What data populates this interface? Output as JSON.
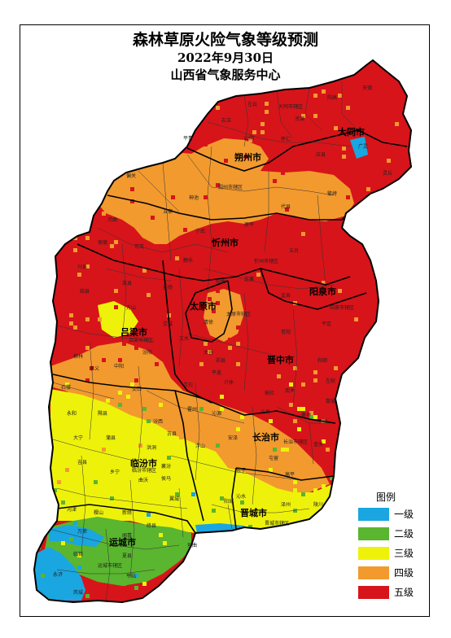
{
  "header": {
    "title": "森林草原火险气象等级预测",
    "date": "2022年9月30日",
    "issuer": "山西省气象服务中心"
  },
  "legend": {
    "title": "图例",
    "items": [
      {
        "label": "一级",
        "color": "#1aa6e0"
      },
      {
        "label": "二级",
        "color": "#5ab52f"
      },
      {
        "label": "三级",
        "color": "#eef20a"
      },
      {
        "label": "四级",
        "color": "#f29a2e"
      },
      {
        "label": "五级",
        "color": "#d7141a"
      }
    ]
  },
  "cities": [
    {
      "name": "大同市"
    },
    {
      "name": "朔州市"
    },
    {
      "name": "忻州市"
    },
    {
      "name": "太原市"
    },
    {
      "name": "阳泉市"
    },
    {
      "name": "吕梁市"
    },
    {
      "name": "晋中市"
    },
    {
      "name": "长治市"
    },
    {
      "name": "临汾市"
    },
    {
      "name": "晋城市"
    },
    {
      "name": "运城市"
    }
  ],
  "counties": [
    {
      "name": "天镇"
    },
    {
      "name": "阳高"
    },
    {
      "name": "大同市辖区"
    },
    {
      "name": "左云"
    },
    {
      "name": "右玉"
    },
    {
      "name": "浑源"
    },
    {
      "name": "广灵"
    },
    {
      "name": "灵丘"
    },
    {
      "name": "怀仁"
    },
    {
      "name": "应县"
    },
    {
      "name": "山阴"
    },
    {
      "name": "平鲁"
    },
    {
      "name": "朔州市辖区"
    },
    {
      "name": "偏关"
    },
    {
      "name": "神池"
    },
    {
      "name": "五寨"
    },
    {
      "name": "河曲"
    },
    {
      "name": "保德"
    },
    {
      "name": "宁武"
    },
    {
      "name": "代县"
    },
    {
      "name": "繁峙"
    },
    {
      "name": "原平"
    },
    {
      "name": "岢岚"
    },
    {
      "name": "静乐"
    },
    {
      "name": "忻州市辖区"
    },
    {
      "name": "定襄"
    },
    {
      "name": "五台"
    },
    {
      "name": "兴县"
    },
    {
      "name": "岚县"
    },
    {
      "name": "娄烦"
    },
    {
      "name": "阳曲"
    },
    {
      "name": "太原市辖区"
    },
    {
      "name": "盂县"
    },
    {
      "name": "阳泉市辖区"
    },
    {
      "name": "平定"
    },
    {
      "name": "临县"
    },
    {
      "name": "方山"
    },
    {
      "name": "吕梁市辖区"
    },
    {
      "name": "交城"
    },
    {
      "name": "文水"
    },
    {
      "name": "清徐"
    },
    {
      "name": "柳林"
    },
    {
      "name": "中阳"
    },
    {
      "name": "汾阳"
    },
    {
      "name": "孝义"
    },
    {
      "name": "石楼"
    },
    {
      "name": "交口"
    },
    {
      "name": "昔阳"
    },
    {
      "name": "和顺"
    },
    {
      "name": "左权"
    },
    {
      "name": "榆社"
    },
    {
      "name": "太谷"
    },
    {
      "name": "祁县"
    },
    {
      "name": "平遥"
    },
    {
      "name": "介休"
    },
    {
      "name": "灵石"
    },
    {
      "name": "武乡"
    },
    {
      "name": "沁县"
    },
    {
      "name": "黎城"
    },
    {
      "name": "襄垣"
    },
    {
      "name": "长治市辖区"
    },
    {
      "name": "壶关"
    },
    {
      "name": "平顺"
    },
    {
      "name": "长子"
    },
    {
      "name": "沁源"
    },
    {
      "name": "安泽"
    },
    {
      "name": "屯留"
    },
    {
      "name": "永和"
    },
    {
      "name": "隰县"
    },
    {
      "name": "汾西"
    },
    {
      "name": "霍州"
    },
    {
      "name": "古县"
    },
    {
      "name": "大宁"
    },
    {
      "name": "蒲县"
    },
    {
      "name": "洪洞"
    },
    {
      "name": "吉县"
    },
    {
      "name": "临汾市辖区"
    },
    {
      "name": "乡宁"
    },
    {
      "name": "襄汾"
    },
    {
      "name": "浮山"
    },
    {
      "name": "曲沃"
    },
    {
      "name": "翼城"
    },
    {
      "name": "侯马"
    },
    {
      "name": "沁水"
    },
    {
      "name": "高平"
    },
    {
      "name": "陵川"
    },
    {
      "name": "阳城"
    },
    {
      "name": "晋城市辖区"
    },
    {
      "name": "泽州"
    },
    {
      "name": "河津"
    },
    {
      "name": "稷山"
    },
    {
      "name": "新绛"
    },
    {
      "name": "绛县"
    },
    {
      "name": "垣曲"
    },
    {
      "name": "万荣"
    },
    {
      "name": "闻喜"
    },
    {
      "name": "临猗"
    },
    {
      "name": "夏县"
    },
    {
      "name": "运城市辖区"
    },
    {
      "name": "永济"
    },
    {
      "name": "芮城"
    },
    {
      "name": "平陆"
    }
  ]
}
